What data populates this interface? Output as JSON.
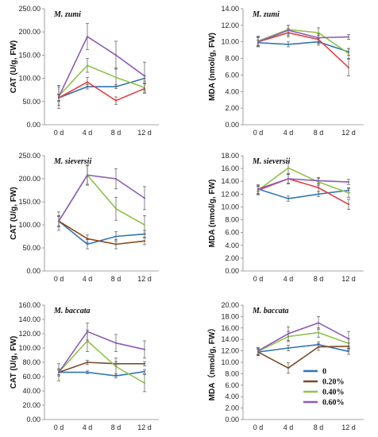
{
  "chart_data": [
    {
      "type": "line",
      "title": "M. zumi",
      "ylabel": "CAT (U/g, FW)",
      "categories": [
        "0 d",
        "4 d",
        "8 d",
        "12 d"
      ],
      "yticks": [
        "0.00",
        "50.00",
        "100.00",
        "150.00",
        "200.00",
        "250.00"
      ],
      "ylim": [
        0,
        250
      ],
      "series": [
        {
          "name": "0",
          "color": "#2e75b6",
          "values": [
            58,
            82,
            82,
            100
          ],
          "errors": [
            6,
            5,
            4,
            6
          ]
        },
        {
          "name": "0.20%",
          "color": "#e04040",
          "values": [
            58,
            92,
            52,
            78
          ],
          "errors": [
            8,
            10,
            8,
            10
          ]
        },
        {
          "name": "0.40%",
          "color": "#8fc34a",
          "values": [
            62,
            128,
            102,
            80
          ],
          "errors": [
            20,
            15,
            20,
            10
          ]
        },
        {
          "name": "0.60%",
          "color": "#8e5bb5",
          "values": [
            60,
            190,
            150,
            105
          ],
          "errors": [
            25,
            28,
            30,
            30
          ]
        }
      ]
    },
    {
      "type": "line",
      "title": "M. zumi",
      "ylabel": "MDA (nmol/g, FW)",
      "categories": [
        "0 d",
        "4 d",
        "8 d",
        "12 d"
      ],
      "yticks": [
        "0.00",
        "2.00",
        "4.00",
        "6.00",
        "8.00",
        "10.00",
        "12.00",
        "14.00"
      ],
      "ylim": [
        0,
        14
      ],
      "series": [
        {
          "name": "0",
          "color": "#2e75b6",
          "values": [
            9.9,
            9.7,
            10.0,
            8.8
          ],
          "errors": [
            0.3,
            0.3,
            0.4,
            0.4
          ]
        },
        {
          "name": "0.20%",
          "color": "#e04040",
          "values": [
            10.0,
            11.1,
            10.3,
            6.9
          ],
          "errors": [
            0.6,
            0.5,
            0.5,
            1.0
          ]
        },
        {
          "name": "0.40%",
          "color": "#8fc34a",
          "values": [
            10.1,
            11.5,
            11.1,
            8.6
          ],
          "errors": [
            0.6,
            0.5,
            0.6,
            0.6
          ]
        },
        {
          "name": "0.60%",
          "color": "#8e5bb5",
          "values": [
            10.0,
            11.4,
            10.5,
            10.6
          ],
          "errors": [
            0.5,
            0.6,
            0.5,
            0.3
          ]
        }
      ]
    },
    {
      "type": "line",
      "title": "M. sieversii",
      "ylabel": "CAT (U/g, FW)",
      "categories": [
        "0 d",
        "4 d",
        "8 d",
        "12 d"
      ],
      "yticks": [
        "0.00",
        "50.00",
        "100.00",
        "150.00",
        "200.00",
        "250.00"
      ],
      "ylim": [
        0,
        250
      ],
      "series": [
        {
          "name": "0",
          "color": "#2e75b6",
          "values": [
            108,
            58,
            75,
            80
          ],
          "errors": [
            12,
            10,
            10,
            8
          ]
        },
        {
          "name": "0.20%",
          "color": "#8b4513",
          "values": [
            108,
            70,
            58,
            65
          ],
          "errors": [
            10,
            8,
            10,
            8
          ]
        },
        {
          "name": "0.40%",
          "color": "#8fc34a",
          "values": [
            108,
            208,
            135,
            100
          ],
          "errors": [
            12,
            22,
            25,
            20
          ]
        },
        {
          "name": "0.60%",
          "color": "#8e5bb5",
          "values": [
            108,
            208,
            200,
            158
          ],
          "errors": [
            20,
            20,
            22,
            25
          ]
        }
      ]
    },
    {
      "type": "line",
      "title": "M. sieversii",
      "ylabel": "MDA (nmol/g, FW)",
      "categories": [
        "0 d",
        "4 d",
        "8 d",
        "12 d"
      ],
      "yticks": [
        "0.00",
        "2.00",
        "4.00",
        "6.00",
        "8.00",
        "10.00",
        "12.00",
        "14.00",
        "16.00",
        "18.00"
      ],
      "ylim": [
        0,
        18
      ],
      "series": [
        {
          "name": "0",
          "color": "#2e75b6",
          "values": [
            12.8,
            11.3,
            12.0,
            12.6
          ],
          "errors": [
            0.4,
            0.4,
            0.4,
            0.4
          ]
        },
        {
          "name": "0.20%",
          "color": "#e04040",
          "values": [
            12.6,
            14.4,
            13.0,
            10.4
          ],
          "errors": [
            0.6,
            0.7,
            0.6,
            0.8
          ]
        },
        {
          "name": "0.40%",
          "color": "#8fc34a",
          "values": [
            12.6,
            16.1,
            13.9,
            12.2
          ],
          "errors": [
            0.7,
            1.0,
            0.6,
            0.7
          ]
        },
        {
          "name": "0.60%",
          "color": "#8e5bb5",
          "values": [
            12.8,
            14.4,
            14.1,
            13.9
          ],
          "errors": [
            0.7,
            0.8,
            0.5,
            0.4
          ]
        }
      ]
    },
    {
      "type": "line",
      "title": "M. baccata",
      "ylabel": "CAT (U/g, FW)",
      "categories": [
        "0 d",
        "4 d",
        "8 d",
        "12 d"
      ],
      "yticks": [
        "0.00",
        "20.00",
        "40.00",
        "60.00",
        "80.00",
        "100.00",
        "120.00",
        "140.00",
        "160.00"
      ],
      "ylim": [
        0,
        160
      ],
      "series": [
        {
          "name": "0",
          "color": "#2e75b6",
          "values": [
            66,
            66,
            61,
            67
          ],
          "errors": [
            3,
            2,
            3,
            3
          ]
        },
        {
          "name": "0.20%",
          "color": "#7b4a2a",
          "values": [
            66,
            80,
            78,
            78
          ],
          "errors": [
            12,
            3,
            3,
            3
          ]
        },
        {
          "name": "0.40%",
          "color": "#8fc34a",
          "values": [
            66,
            110,
            74,
            51
          ],
          "errors": [
            5,
            15,
            12,
            12
          ]
        },
        {
          "name": "0.60%",
          "color": "#8e5bb5",
          "values": [
            66,
            123,
            107,
            98
          ],
          "errors": [
            5,
            12,
            12,
            12
          ]
        }
      ]
    },
    {
      "type": "line",
      "title": "M. baccata",
      "ylabel": "MDA（nmol/g, FW）",
      "categories": [
        "0 d",
        "4 d",
        "8 d",
        "12 d"
      ],
      "yticks": [
        "0.00",
        "2.00",
        "4.00",
        "6.00",
        "8.00",
        "10.00",
        "12.00",
        "14.00",
        "16.00",
        "18.00",
        "20.00"
      ],
      "ylim": [
        0,
        20
      ],
      "series": [
        {
          "name": "0",
          "color": "#2e75b6",
          "values": [
            11.8,
            12.5,
            13.1,
            11.9
          ],
          "errors": [
            0.5,
            0.5,
            0.5,
            0.5
          ]
        },
        {
          "name": "0.20%",
          "color": "#7b4a2a",
          "values": [
            11.8,
            9.0,
            12.7,
            12.8
          ],
          "errors": [
            0.6,
            0.9,
            0.6,
            0.6
          ]
        },
        {
          "name": "0.40%",
          "color": "#8fc34a",
          "values": [
            11.9,
            14.5,
            15.2,
            13.3
          ],
          "errors": [
            0.7,
            0.9,
            0.8,
            0.8
          ]
        },
        {
          "name": "0.60%",
          "color": "#8e5bb5",
          "values": [
            12.0,
            15.0,
            16.9,
            14.1
          ],
          "errors": [
            0.6,
            1.2,
            1.1,
            1.3
          ]
        }
      ]
    }
  ],
  "legend": [
    {
      "label": "0",
      "color": "#2e75b6"
    },
    {
      "label": "0.20%",
      "color": "#7b4a2a"
    },
    {
      "label": "0.40%",
      "color": "#8fc34a"
    },
    {
      "label": "0.60%",
      "color": "#8e5bb5"
    }
  ]
}
